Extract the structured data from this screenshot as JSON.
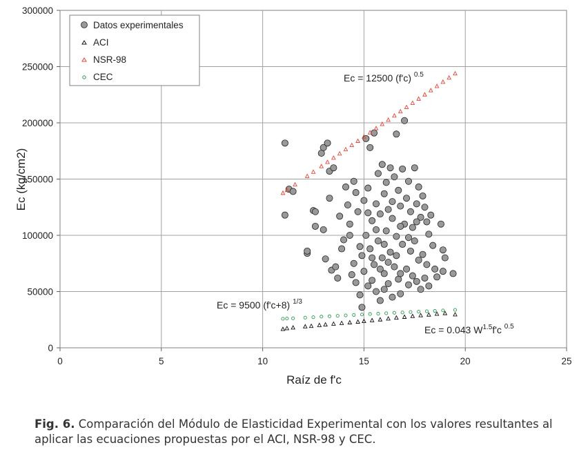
{
  "chart_data": {
    "type": "scatter",
    "xlabel": "Raíz de f'c",
    "ylabel": "Ec (kg/cm2)",
    "xlim": [
      0,
      25
    ],
    "ylim": [
      0,
      300000
    ],
    "x_ticks": [
      0,
      5,
      10,
      15,
      20,
      25
    ],
    "y_ticks": [
      0,
      50000,
      100000,
      150000,
      200000,
      250000,
      300000
    ],
    "grid": true,
    "legend_position": "top-left",
    "legend": [
      "Datos experimentales",
      "ACI",
      "NSR-98",
      "CEC"
    ],
    "annotations": {
      "nsr": {
        "main": "Ec = 12500 (f'c)",
        "exp": "0.5"
      },
      "cec": {
        "main": "Ec = 9500 (f'c+8)",
        "exp": "1/3"
      },
      "aci": {
        "main": "Ec = 0.043 W",
        "w_exp": "1.5",
        "mid": "f'c",
        "exp": "0.5"
      }
    },
    "series": [
      {
        "name": "Datos experimentales",
        "color": "#999999",
        "points": [
          [
            11.1,
            182000
          ],
          [
            11.1,
            118000
          ],
          [
            11.3,
            141000
          ],
          [
            11.5,
            139000
          ],
          [
            12.2,
            84000
          ],
          [
            12.2,
            86000
          ],
          [
            12.5,
            122000
          ],
          [
            12.6,
            121000
          ],
          [
            12.6,
            108000
          ],
          [
            12.9,
            173000
          ],
          [
            13.0,
            178000
          ],
          [
            13.0,
            105000
          ],
          [
            13.1,
            79000
          ],
          [
            13.2,
            182000
          ],
          [
            13.3,
            157000
          ],
          [
            13.3,
            133000
          ],
          [
            13.4,
            69000
          ],
          [
            13.5,
            160000
          ],
          [
            13.6,
            72000
          ],
          [
            13.7,
            62000
          ],
          [
            13.8,
            117000
          ],
          [
            13.9,
            88000
          ],
          [
            14.0,
            96000
          ],
          [
            14.1,
            143000
          ],
          [
            14.2,
            127000
          ],
          [
            14.3,
            110000
          ],
          [
            14.4,
            65000
          ],
          [
            14.5,
            148000
          ],
          [
            14.5,
            75000
          ],
          [
            14.6,
            138000
          ],
          [
            14.6,
            58000
          ],
          [
            14.7,
            121000
          ],
          [
            14.8,
            47000
          ],
          [
            14.9,
            82000
          ],
          [
            14.9,
            36000
          ],
          [
            15.0,
            131000
          ],
          [
            15.0,
            68000
          ],
          [
            15.1,
            186000
          ],
          [
            15.1,
            100000
          ],
          [
            15.2,
            142000
          ],
          [
            15.2,
            55000
          ],
          [
            15.3,
            178000
          ],
          [
            15.3,
            88000
          ],
          [
            15.4,
            113000
          ],
          [
            15.4,
            60000
          ],
          [
            15.5,
            191000
          ],
          [
            15.5,
            74000
          ],
          [
            15.6,
            128000
          ],
          [
            15.6,
            50000
          ],
          [
            15.7,
            155000
          ],
          [
            15.7,
            95000
          ],
          [
            15.8,
            119000
          ],
          [
            15.8,
            42000
          ],
          [
            15.9,
            163000
          ],
          [
            15.9,
            80000
          ],
          [
            16.0,
            137000
          ],
          [
            16.0,
            66000
          ],
          [
            16.1,
            147000
          ],
          [
            16.1,
            104000
          ],
          [
            16.2,
            123000
          ],
          [
            16.2,
            57000
          ],
          [
            16.3,
            160000
          ],
          [
            16.3,
            85000
          ],
          [
            16.4,
            115000
          ],
          [
            16.4,
            45000
          ],
          [
            16.5,
            152000
          ],
          [
            16.5,
            72000
          ],
          [
            16.6,
            190000
          ],
          [
            16.6,
            99000
          ],
          [
            16.7,
            140000
          ],
          [
            16.7,
            61000
          ],
          [
            16.8,
            126000
          ],
          [
            16.8,
            48000
          ],
          [
            16.9,
            159000
          ],
          [
            16.9,
            92000
          ],
          [
            17.0,
            202000
          ],
          [
            17.0,
            110000
          ],
          [
            17.1,
            133000
          ],
          [
            17.1,
            70000
          ],
          [
            17.2,
            148000
          ],
          [
            17.2,
            56000
          ],
          [
            17.3,
            121000
          ],
          [
            17.3,
            86000
          ],
          [
            17.4,
            107000
          ],
          [
            17.4,
            64000
          ],
          [
            17.5,
            160000
          ],
          [
            17.5,
            95000
          ],
          [
            17.6,
            128000
          ],
          [
            17.6,
            59000
          ],
          [
            17.7,
            143000
          ],
          [
            17.7,
            78000
          ],
          [
            17.8,
            116000
          ],
          [
            17.8,
            52000
          ],
          [
            17.9,
            135000
          ],
          [
            17.9,
            83000
          ],
          [
            18.0,
            125000
          ],
          [
            18.0,
            62000
          ],
          [
            18.1,
            112000
          ],
          [
            18.1,
            74000
          ],
          [
            18.2,
            101000
          ],
          [
            18.2,
            55000
          ],
          [
            18.3,
            118000
          ],
          [
            18.4,
            91000
          ],
          [
            18.5,
            70000
          ],
          [
            18.6,
            63000
          ],
          [
            18.8,
            110000
          ],
          [
            18.9,
            87000
          ],
          [
            18.9,
            68000
          ],
          [
            19.0,
            80000
          ],
          [
            19.4,
            66000
          ],
          [
            14.3,
            100000
          ],
          [
            14.8,
            90000
          ],
          [
            15.2,
            120000
          ],
          [
            15.6,
            105000
          ],
          [
            16.0,
            92000
          ],
          [
            16.4,
            130000
          ],
          [
            16.8,
            108000
          ],
          [
            17.2,
            98000
          ],
          [
            17.6,
            112000
          ],
          [
            15.8,
            70000
          ],
          [
            16.2,
            76000
          ],
          [
            16.6,
            82000
          ],
          [
            15.4,
            80000
          ],
          [
            16.0,
            52000
          ],
          [
            16.8,
            66000
          ]
        ]
      },
      {
        "name": "ACI",
        "color": "#111111",
        "x": [
          11.0,
          11.2,
          11.5,
          12.1,
          12.4,
          12.8,
          13.1,
          13.5,
          13.9,
          14.3,
          14.7,
          15.0,
          15.4,
          15.8,
          16.2,
          16.6,
          17.0,
          17.4,
          17.8,
          18.2,
          18.6,
          19.0,
          19.5
        ],
        "y": [
          16500,
          17200,
          17800,
          18800,
          19200,
          20000,
          20500,
          21200,
          21800,
          22400,
          23000,
          23600,
          24300,
          25000,
          25800,
          26600,
          27300,
          28000,
          28700,
          29300,
          30000,
          30600,
          29500
        ]
      },
      {
        "name": "NSR-98",
        "color": "#e0443a",
        "x": [
          11.0,
          11.2,
          11.6,
          12.2,
          12.5,
          12.9,
          13.2,
          13.5,
          13.8,
          14.1,
          14.4,
          14.7,
          15.0,
          15.3,
          15.6,
          15.9,
          16.2,
          16.5,
          16.8,
          17.1,
          17.4,
          17.7,
          18.0,
          18.3,
          18.6,
          18.9,
          19.2,
          19.5
        ],
        "y": [
          137500,
          140000,
          145000,
          152500,
          156250,
          161250,
          165000,
          168750,
          172500,
          176250,
          180000,
          183750,
          187500,
          191250,
          195000,
          198750,
          202500,
          206250,
          210000,
          213750,
          217500,
          221250,
          225000,
          228750,
          232500,
          236250,
          240000,
          243750
        ]
      },
      {
        "name": "CEC",
        "color": "#2a9a4a",
        "x": [
          11.0,
          11.2,
          11.5,
          12.1,
          12.5,
          12.9,
          13.3,
          13.7,
          14.1,
          14.5,
          14.9,
          15.3,
          15.7,
          16.1,
          16.5,
          16.9,
          17.3,
          17.7,
          18.1,
          18.5,
          18.9,
          19.5
        ],
        "y": [
          25800,
          26000,
          26200,
          26800,
          27200,
          27700,
          28000,
          28400,
          28800,
          29200,
          29600,
          30000,
          30300,
          30700,
          31100,
          31400,
          31800,
          32100,
          32500,
          32800,
          33200,
          33700
        ]
      }
    ]
  },
  "caption": {
    "label": "Fig. 6.",
    "text": " Comparación del Módulo de Elasticidad Experimental con los valores resultantes al aplicar las ecuaciones propuestas por el ACI, NSR-98 y CEC."
  }
}
